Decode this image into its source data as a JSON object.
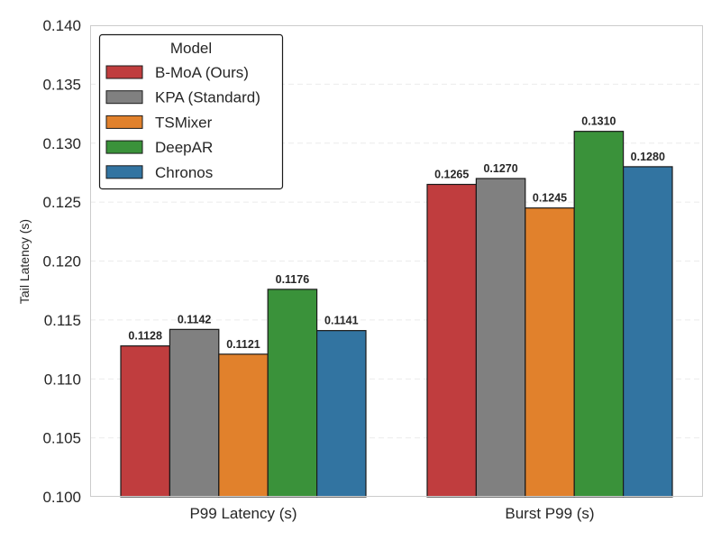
{
  "chart_data": {
    "type": "bar",
    "title": "",
    "xlabel": "",
    "ylabel": "Tail Latency (s)",
    "ylim": [
      0.1,
      0.14
    ],
    "yticks": [
      "0.100",
      "0.105",
      "0.110",
      "0.115",
      "0.120",
      "0.125",
      "0.130",
      "0.135",
      "0.140"
    ],
    "grid": true,
    "categories": [
      "P99 Latency (s)",
      "Burst P99 (s)"
    ],
    "series": [
      {
        "name": "B-MoA (Ours)",
        "color": "#c03d3e",
        "values": [
          0.1128,
          0.1265
        ],
        "labels": [
          "0.1128",
          "0.1265"
        ]
      },
      {
        "name": "KPA (Standard)",
        "color": "#808080",
        "values": [
          0.1142,
          0.127
        ],
        "labels": [
          "0.1142",
          "0.1270"
        ]
      },
      {
        "name": "TSMixer",
        "color": "#e1812c",
        "values": [
          0.1121,
          0.1245
        ],
        "labels": [
          "0.1121",
          "0.1245"
        ]
      },
      {
        "name": "DeepAR",
        "color": "#3a923a",
        "values": [
          0.1176,
          0.131
        ],
        "labels": [
          "0.1176",
          "0.1310"
        ]
      },
      {
        "name": "Chronos",
        "color": "#3274a1",
        "values": [
          0.1141,
          0.128
        ],
        "labels": [
          "0.1141",
          "0.1280"
        ]
      }
    ],
    "legend": {
      "title": "Model",
      "placement": "top-left"
    }
  }
}
